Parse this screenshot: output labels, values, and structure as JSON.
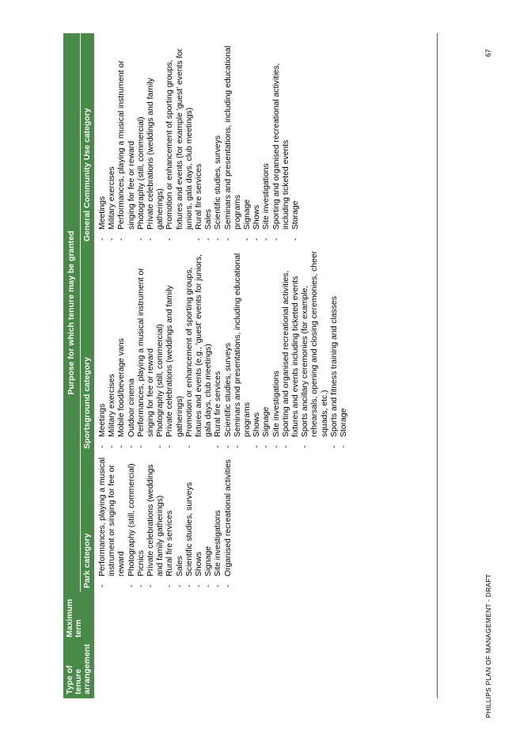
{
  "footer": {
    "left": "PHILLIPS PLAN OF MANAGEMENT - DRAFT",
    "page_number": "67"
  },
  "table": {
    "headers": {
      "type": "Type of tenure arrangement",
      "term": "Maximum term",
      "group": "Purpose for which tenure may be granted",
      "park": "Park category",
      "sportsground": "Sportsground category",
      "community": "General Community Use category"
    },
    "park_items": [
      "Performances, playing a musical instrument or singing for fee or reward",
      "Photography (still, commercial)",
      "Picnics",
      "Private celebrations (weddings and family gatherings)",
      "Rural fire services",
      "Sales",
      "Scientific studies, surveys",
      "Shows",
      "Signage",
      "Site investigations",
      "Organised recreational activities"
    ],
    "sportsground_items": [
      "Meetings",
      "Military exercises",
      "Mobile food/beverage vans",
      "Outdoor cinema",
      "Performances, playing a musical instrument or singing for fee or reward",
      "Photography (still, commercial)",
      "Private celebrations (weddings and family gatherings)",
      "Promotion or enhancement of sporting groups, fixtures and events (e.g., 'guest' events for juniors, gala days, club meetings)",
      "Rural fire services",
      "Scientific studies, surveys",
      "Seminars and presentations, including educational programs",
      "Shows",
      "Signage",
      "Site investigations",
      "Sporting and organised recreational activities, fixtures and events including ticketed events",
      "Sports ancillary ceremonies (for example, rehearsals, opening and closing ceremonies, cheer squads, etc.)",
      "Sports and fitness training and classes",
      "Storage"
    ],
    "community_items": [
      "Meetings",
      "Military exercises",
      "Performances, playing a musical instrument or singing for fee or reward",
      "Photography (still, commercial)",
      "Private celebrations (weddings and family gatherings)",
      "Promotion or enhancement of sporting groups, fixtures and events (for example 'guest' events for juniors, gala days, club meetings)",
      "Rural fire services",
      "Sales",
      "Scientific studies, surveys",
      "Seminars and presentations, including educational programs",
      "Signage",
      "Shows",
      "Site investigations",
      "Sporting and organised recreational activities, including ticketed events",
      "Storage"
    ]
  }
}
